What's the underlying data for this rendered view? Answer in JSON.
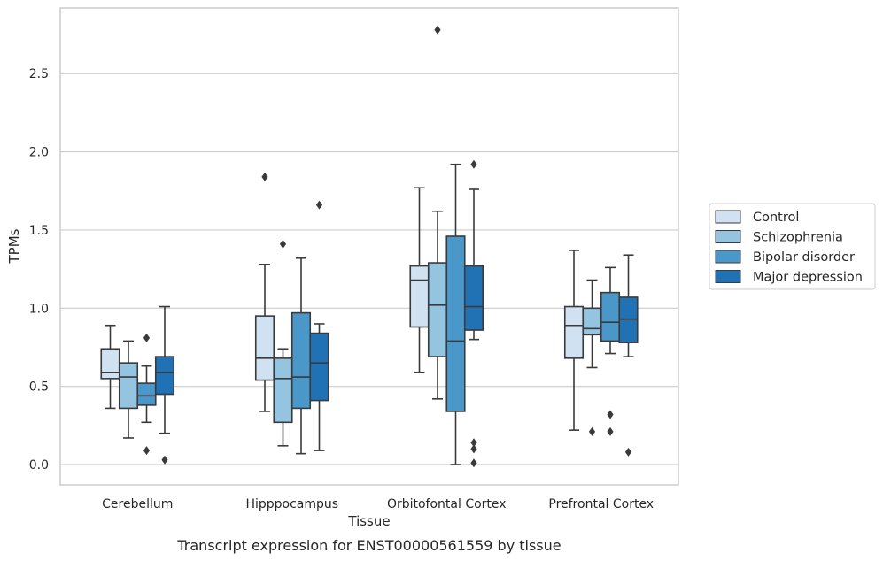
{
  "chart_data": {
    "type": "box",
    "title": "",
    "caption": "Transcript expression for ENST00000561559 by tissue",
    "xlabel": "Tissue",
    "ylabel": "TPMs",
    "ylim": [
      -0.13,
      2.92
    ],
    "yticks": [
      0.0,
      0.5,
      1.0,
      1.5,
      2.0,
      2.5
    ],
    "ytick_labels": [
      "0.0",
      "0.5",
      "1.0",
      "1.5",
      "2.0",
      "2.5"
    ],
    "grid": true,
    "legend_position": "right",
    "categories": [
      "Cerebellum",
      "Hipppocampus",
      "Orbitofontal Cortex",
      "Prefrontal Cortex"
    ],
    "series": [
      {
        "name": "Control",
        "color": "#d0e1f2",
        "boxes": [
          {
            "whislo": 0.36,
            "q1": 0.55,
            "med": 0.59,
            "q3": 0.74,
            "whishi": 0.89,
            "fliers": []
          },
          {
            "whislo": 0.34,
            "q1": 0.54,
            "med": 0.68,
            "q3": 0.95,
            "whishi": 1.28,
            "fliers": [
              1.84
            ]
          },
          {
            "whislo": 0.59,
            "q1": 0.88,
            "med": 1.18,
            "q3": 1.27,
            "whishi": 1.77,
            "fliers": []
          },
          {
            "whislo": 0.22,
            "q1": 0.68,
            "med": 0.89,
            "q3": 1.01,
            "whishi": 1.37,
            "fliers": []
          }
        ]
      },
      {
        "name": "Schizophrenia",
        "color": "#94c4df",
        "boxes": [
          {
            "whislo": 0.17,
            "q1": 0.36,
            "med": 0.56,
            "q3": 0.65,
            "whishi": 0.79,
            "fliers": []
          },
          {
            "whislo": 0.12,
            "q1": 0.27,
            "med": 0.55,
            "q3": 0.68,
            "whishi": 0.74,
            "fliers": [
              1.41
            ]
          },
          {
            "whislo": 0.42,
            "q1": 0.69,
            "med": 1.02,
            "q3": 1.29,
            "whishi": 1.62,
            "fliers": [
              2.78
            ]
          },
          {
            "whislo": 0.62,
            "q1": 0.83,
            "med": 0.87,
            "q3": 1.0,
            "whishi": 1.18,
            "fliers": [
              0.21
            ]
          }
        ]
      },
      {
        "name": "Bipolar disorder",
        "color": "#4a98c9",
        "boxes": [
          {
            "whislo": 0.27,
            "q1": 0.38,
            "med": 0.44,
            "q3": 0.52,
            "whishi": 0.63,
            "fliers": [
              0.81,
              0.09
            ]
          },
          {
            "whislo": 0.07,
            "q1": 0.36,
            "med": 0.56,
            "q3": 0.97,
            "whishi": 1.32,
            "fliers": []
          },
          {
            "whislo": 0.0,
            "q1": 0.34,
            "med": 0.79,
            "q3": 1.46,
            "whishi": 1.92,
            "fliers": []
          },
          {
            "whislo": 0.71,
            "q1": 0.79,
            "med": 0.91,
            "q3": 1.1,
            "whishi": 1.26,
            "fliers": [
              0.32,
              0.21
            ]
          }
        ]
      },
      {
        "name": "Major depression",
        "color": "#2171b5",
        "boxes": [
          {
            "whislo": 0.2,
            "q1": 0.45,
            "med": 0.59,
            "q3": 0.69,
            "whishi": 1.01,
            "fliers": [
              0.03
            ]
          },
          {
            "whislo": 0.09,
            "q1": 0.41,
            "med": 0.65,
            "q3": 0.84,
            "whishi": 0.9,
            "fliers": [
              1.66
            ]
          },
          {
            "whislo": 0.8,
            "q1": 0.86,
            "med": 1.01,
            "q3": 1.27,
            "whishi": 1.76,
            "fliers": [
              1.92,
              0.14,
              0.1,
              0.01
            ]
          },
          {
            "whislo": 0.69,
            "q1": 0.78,
            "med": 0.93,
            "q3": 1.07,
            "whishi": 1.34,
            "fliers": [
              0.08
            ]
          }
        ]
      }
    ]
  }
}
